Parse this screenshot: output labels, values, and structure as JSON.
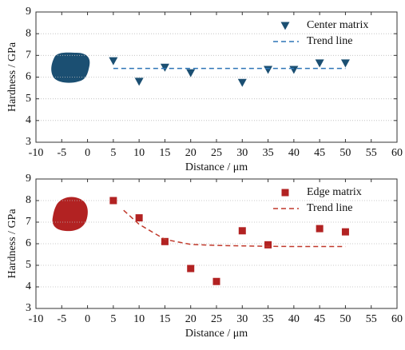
{
  "chart_data": [
    {
      "type": "scatter",
      "xlabel": "Distance / μm",
      "ylabel": "Hardness / GPa",
      "xlim": [
        -10,
        60
      ],
      "xticks": [
        -10,
        -5,
        0,
        5,
        10,
        15,
        20,
        25,
        30,
        35,
        40,
        45,
        50,
        55,
        60
      ],
      "ylim": [
        3,
        9
      ],
      "yticks": [
        3,
        4,
        5,
        6,
        7,
        8,
        9
      ],
      "grid": "y",
      "legend": "upper-right",
      "series": [
        {
          "name": "Center matrix",
          "color": "#1b4f72",
          "mode": "markers",
          "marker": "triangle-down",
          "x": [
            5,
            10,
            15,
            20,
            30,
            35,
            40,
            45,
            50
          ],
          "values": [
            6.75,
            5.8,
            6.45,
            6.2,
            5.75,
            6.35,
            6.35,
            6.65,
            6.65
          ]
        },
        {
          "name": "Trend line",
          "color": "#2e75b6",
          "mode": "dashed-line",
          "x": [
            5,
            50
          ],
          "values": [
            6.4,
            6.4
          ]
        }
      ]
    },
    {
      "type": "scatter",
      "xlabel": "Distance / μm",
      "ylabel": "Hardness / GPa",
      "xlim": [
        -10,
        60
      ],
      "xticks": [
        -10,
        -5,
        0,
        5,
        10,
        15,
        20,
        25,
        30,
        35,
        40,
        45,
        50,
        55,
        60
      ],
      "ylim": [
        3,
        9
      ],
      "yticks": [
        3,
        4,
        5,
        6,
        7,
        8,
        9
      ],
      "grid": "y",
      "legend": "upper-right",
      "series": [
        {
          "name": "Edge matrix",
          "color": "#b22222",
          "mode": "markers",
          "marker": "square",
          "x": [
            5,
            10,
            15,
            20,
            25,
            30,
            35,
            45,
            50
          ],
          "values": [
            8.0,
            7.2,
            6.1,
            4.85,
            4.25,
            6.6,
            5.95,
            6.7,
            6.55
          ]
        },
        {
          "name": "Trend line",
          "color": "#c0392b",
          "mode": "dashed-line",
          "x": [
            7,
            10,
            15,
            20,
            25,
            30,
            35,
            40,
            45,
            50
          ],
          "values": [
            7.55,
            6.9,
            6.2,
            5.97,
            5.92,
            5.9,
            5.88,
            5.87,
            5.87,
            5.87
          ]
        }
      ]
    }
  ]
}
